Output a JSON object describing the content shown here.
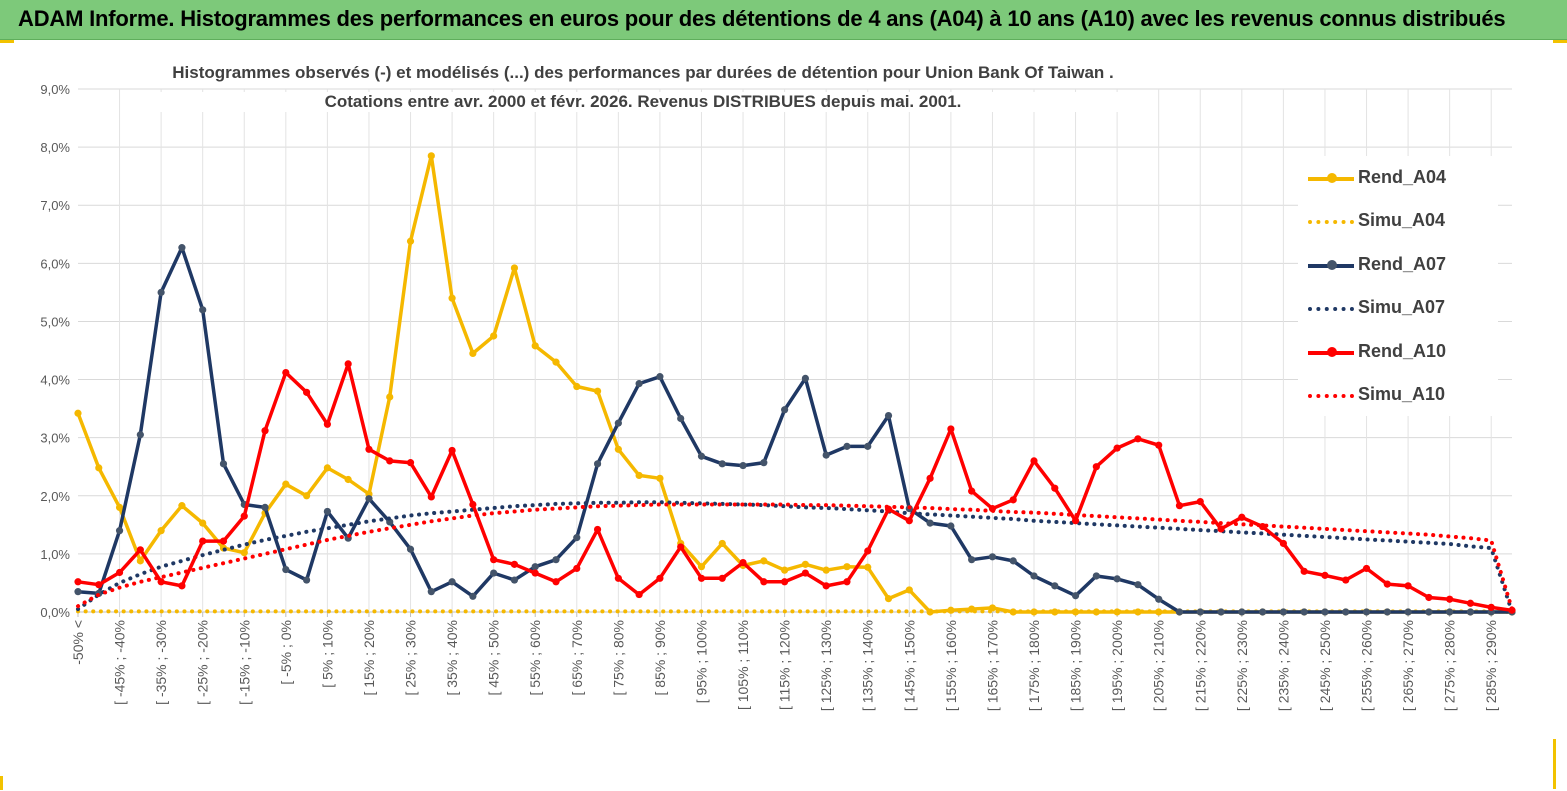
{
  "banner": {
    "title": "ADAM Informe. Histogrammes des performances en euros pour des détentions de 4 ans (A04) à 10 ans (A10) avec les revenus connus distribués"
  },
  "colors": {
    "banner_bg": "#7dc97a",
    "corner_accent": "#f2c200",
    "rend_a04": "#f5b800",
    "rend_a07": "#1f3864",
    "rend_a10": "#ff0000",
    "grid": "#d9d9d9"
  },
  "chart_data": {
    "type": "line",
    "title_line1": "Histogrammes observés (-) et modélisés (...) des performances par durées de détention pour Union Bank Of Taiwan .",
    "title_line2": "Cotations entre avr. 2000 et févr. 2026. Revenus DISTRIBUES depuis mai. 2001.",
    "ylim": [
      0,
      9
    ],
    "y_ticks": [
      "0,0%",
      "1,0%",
      "2,0%",
      "3,0%",
      "4,0%",
      "5,0%",
      "6,0%",
      "7,0%",
      "8,0%",
      "9,0%"
    ],
    "category_count": 70,
    "x_tick_labels": [
      "-50% <",
      "[ -45% ; -40%",
      "[ -35% ; -30%",
      "[ -25% ; -20%",
      "[ -15% ; -10%",
      "[ -5% ; 0%",
      "[ 5% ; 10%",
      "[ 15% ; 20%",
      "[ 25% ; 30%",
      "[ 35% ; 40%",
      "[ 45% ; 50%",
      "[ 55% ; 60%",
      "[ 65% ; 70%",
      "[ 75% ; 80%",
      "[ 85% ; 90%",
      "[ 95% ; 100%",
      "[ 105% ; 110%",
      "[ 115% ; 120%",
      "[ 125% ; 130%",
      "[ 135% ; 140%",
      "[ 145% ; 150%",
      "[ 155% ; 160%",
      "[ 165% ; 170%",
      "[ 175% ; 180%",
      "[ 185% ; 190%",
      "[ 195% ; 200%",
      "[ 205% ; 210%",
      "[ 215% ; 220%",
      "[ 225% ; 230%",
      "[ 235% ; 240%",
      "[ 245% ; 250%",
      "[ 255% ; 260%",
      "[ 265% ; 270%",
      "[ 275% ; 280%",
      "[ 285% ; 290%"
    ],
    "series": [
      {
        "name": "Rend_A04",
        "style": "solid",
        "color": "#f5b800",
        "values": [
          3.42,
          2.48,
          1.8,
          0.88,
          1.4,
          1.83,
          1.53,
          1.1,
          1.02,
          1.7,
          2.2,
          2.0,
          2.48,
          2.28,
          2.03,
          3.7,
          6.38,
          7.85,
          5.4,
          4.45,
          4.75,
          5.92,
          4.58,
          4.3,
          3.88,
          3.8,
          2.8,
          2.35,
          2.3,
          1.18,
          0.78,
          1.18,
          0.8,
          0.88,
          0.72,
          0.82,
          0.72,
          0.78,
          0.77,
          0.23,
          0.38,
          0.0,
          0.03,
          0.05,
          0.07,
          0.0,
          0.0,
          0.0,
          0.0,
          0.0,
          0.0,
          0.0,
          0.0,
          0.0,
          0.0,
          0.0,
          0.0,
          0.0,
          0.0,
          0.0,
          0.0,
          0.0,
          0.0,
          0.0,
          0.0,
          0.0,
          0.0,
          0.0,
          0.0,
          0.0
        ]
      },
      {
        "name": "Simu_A04",
        "style": "dotted",
        "color": "#f5b800",
        "values": [
          0.01,
          0.01,
          0.01,
          0.01,
          0.01,
          0.01,
          0.01,
          0.01,
          0.01,
          0.01,
          0.01,
          0.01,
          0.01,
          0.01,
          0.01,
          0.01,
          0.01,
          0.01,
          0.01,
          0.01,
          0.01,
          0.01,
          0.01,
          0.01,
          0.01,
          0.01,
          0.01,
          0.01,
          0.01,
          0.01,
          0.01,
          0.01,
          0.01,
          0.01,
          0.01,
          0.01,
          0.01,
          0.01,
          0.01,
          0.01,
          0.01,
          0.01,
          0.01,
          0.01,
          0.01,
          0.01,
          0.01,
          0.01,
          0.01,
          0.01,
          0.01,
          0.01,
          0.01,
          0.01,
          0.01,
          0.01,
          0.01,
          0.01,
          0.01,
          0.01,
          0.01,
          0.01,
          0.01,
          0.01,
          0.01,
          0.01,
          0.01,
          0.01,
          0.01,
          0.0
        ]
      },
      {
        "name": "Rend_A07",
        "style": "solid",
        "color": "#1f3864",
        "values": [
          0.35,
          0.32,
          1.4,
          3.05,
          5.5,
          6.27,
          5.2,
          2.55,
          1.85,
          1.8,
          0.73,
          0.55,
          1.73,
          1.27,
          1.95,
          1.55,
          1.08,
          0.35,
          0.52,
          0.27,
          0.67,
          0.55,
          0.78,
          0.9,
          1.28,
          2.55,
          3.25,
          3.93,
          4.05,
          3.33,
          2.68,
          2.55,
          2.52,
          2.57,
          3.48,
          4.02,
          2.7,
          2.85,
          2.85,
          3.38,
          1.78,
          1.53,
          1.48,
          0.9,
          0.95,
          0.88,
          0.62,
          0.45,
          0.28,
          0.62,
          0.57,
          0.47,
          0.22,
          0.0,
          0.0,
          0.0,
          0.0,
          0.0,
          0.0,
          0.0,
          0.0,
          0.0,
          0.0,
          0.0,
          0.0,
          0.0,
          0.0,
          0.0,
          0.0,
          0.0
        ]
      },
      {
        "name": "Simu_A07",
        "style": "dotted",
        "color": "#1f3864",
        "values": [
          0.05,
          0.3,
          0.5,
          0.65,
          0.78,
          0.88,
          0.98,
          1.07,
          1.16,
          1.24,
          1.31,
          1.38,
          1.44,
          1.5,
          1.56,
          1.61,
          1.66,
          1.7,
          1.73,
          1.76,
          1.79,
          1.82,
          1.84,
          1.86,
          1.87,
          1.88,
          1.88,
          1.89,
          1.89,
          1.88,
          1.87,
          1.86,
          1.85,
          1.84,
          1.82,
          1.8,
          1.79,
          1.77,
          1.75,
          1.73,
          1.7,
          1.68,
          1.66,
          1.64,
          1.62,
          1.6,
          1.57,
          1.55,
          1.53,
          1.51,
          1.49,
          1.47,
          1.45,
          1.43,
          1.41,
          1.39,
          1.37,
          1.35,
          1.33,
          1.31,
          1.29,
          1.27,
          1.25,
          1.23,
          1.21,
          1.19,
          1.17,
          1.13,
          1.1,
          0.0
        ]
      },
      {
        "name": "Rend_A10",
        "style": "solid",
        "color": "#ff0000",
        "values": [
          0.52,
          0.47,
          0.68,
          1.07,
          0.52,
          0.45,
          1.22,
          1.22,
          1.65,
          3.12,
          4.12,
          3.78,
          3.23,
          4.27,
          2.8,
          2.6,
          2.57,
          1.98,
          2.78,
          1.85,
          0.9,
          0.82,
          0.67,
          0.52,
          0.75,
          1.42,
          0.58,
          0.3,
          0.58,
          1.12,
          0.58,
          0.58,
          0.85,
          0.52,
          0.52,
          0.67,
          0.45,
          0.52,
          1.05,
          1.77,
          1.57,
          2.3,
          3.15,
          2.08,
          1.78,
          1.93,
          2.6,
          2.13,
          1.57,
          2.5,
          2.82,
          2.98,
          2.87,
          1.83,
          1.9,
          1.43,
          1.63,
          1.47,
          1.18,
          0.7,
          0.63,
          0.55,
          0.75,
          0.48,
          0.45,
          0.25,
          0.22,
          0.15,
          0.08,
          0.03
        ]
      },
      {
        "name": "Simu_A10",
        "style": "dotted",
        "color": "#ff0000",
        "values": [
          0.1,
          0.3,
          0.42,
          0.52,
          0.6,
          0.68,
          0.76,
          0.84,
          0.92,
          1.0,
          1.08,
          1.16,
          1.24,
          1.31,
          1.38,
          1.44,
          1.5,
          1.56,
          1.61,
          1.66,
          1.7,
          1.73,
          1.76,
          1.78,
          1.8,
          1.82,
          1.83,
          1.84,
          1.85,
          1.85,
          1.85,
          1.85,
          1.85,
          1.85,
          1.85,
          1.84,
          1.84,
          1.83,
          1.82,
          1.81,
          1.8,
          1.79,
          1.77,
          1.76,
          1.74,
          1.72,
          1.71,
          1.69,
          1.67,
          1.65,
          1.63,
          1.61,
          1.59,
          1.57,
          1.55,
          1.53,
          1.51,
          1.49,
          1.47,
          1.45,
          1.43,
          1.41,
          1.39,
          1.37,
          1.35,
          1.33,
          1.3,
          1.27,
          1.23,
          0.05
        ]
      }
    ]
  }
}
